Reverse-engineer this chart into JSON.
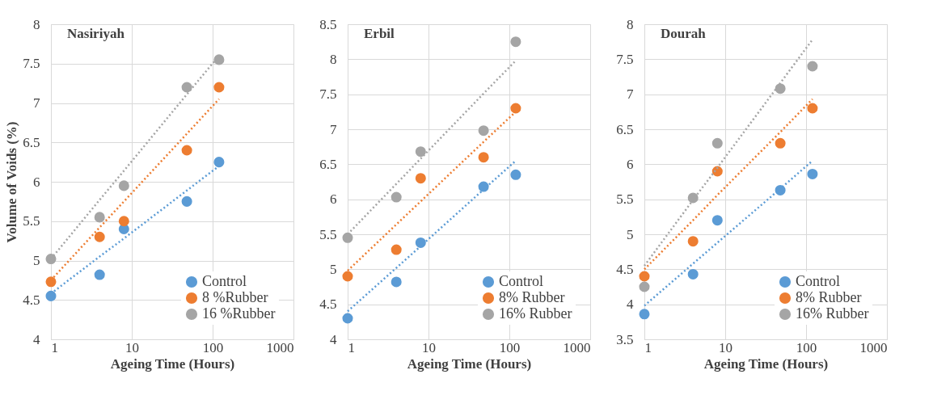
{
  "chart_data": [
    {
      "type": "scatter",
      "title": "Nasiriyah",
      "xlabel": "Ageing Time (Hours)",
      "ylabel": "Volume of Voids (%)",
      "x": [
        1,
        4,
        8,
        48,
        120
      ],
      "log": "x",
      "xlim": [
        1,
        1000
      ],
      "xticks": [
        1,
        10,
        100,
        1000
      ],
      "ylim": [
        4,
        8
      ],
      "yticks": [
        4,
        4.5,
        5,
        5.5,
        6,
        6.5,
        7,
        7.5,
        8
      ],
      "grid": true,
      "legend": "bottom right",
      "marker": "circle",
      "series": [
        {
          "name": "Control",
          "color": "#5b9bd5",
          "values": [
            4.55,
            4.82,
            5.4,
            5.75,
            6.25
          ]
        },
        {
          "name": "8 %Rubber",
          "color": "#ed7d31",
          "values": [
            4.73,
            5.3,
            5.5,
            6.4,
            7.2
          ]
        },
        {
          "name": "16 %Rubber",
          "color": "#a5a5a5",
          "values": [
            5.02,
            5.55,
            5.95,
            7.2,
            7.55
          ]
        },
        {
          "type": "line",
          "color": "#5b9bd5",
          "line_style": "dotted",
          "marker": "none",
          "values": [
            4.58,
            5.05,
            5.28,
            5.89,
            6.2
          ]
        },
        {
          "type": "line",
          "color": "#ed7d31",
          "line_style": "dotted",
          "marker": "none",
          "values": [
            4.75,
            5.42,
            5.75,
            6.61,
            7.05
          ]
        },
        {
          "type": "line",
          "color": "#a5a5a5",
          "line_style": "dotted",
          "marker": "none",
          "values": [
            5.02,
            5.77,
            6.14,
            7.11,
            7.6
          ]
        }
      ]
    },
    {
      "type": "scatter",
      "title": "Erbil",
      "xlabel": "Ageing Time (Hours)",
      "x": [
        1,
        4,
        8,
        48,
        120
      ],
      "log": "x",
      "xlim": [
        1,
        1000
      ],
      "xticks": [
        1,
        10,
        100,
        1000
      ],
      "ylim": [
        4,
        8.5
      ],
      "yticks": [
        4,
        4.5,
        5,
        5.5,
        6,
        6.5,
        7,
        7.5,
        8,
        8.5
      ],
      "grid": true,
      "legend": "bottom right",
      "marker": "circle",
      "series": [
        {
          "name": "Control",
          "color": "#5b9bd5",
          "values": [
            4.3,
            4.82,
            5.38,
            6.18,
            6.35
          ]
        },
        {
          "name": "8% Rubber",
          "color": "#ed7d31",
          "values": [
            4.9,
            5.28,
            6.3,
            6.6,
            7.3
          ]
        },
        {
          "name": "16% Rubber",
          "color": "#a5a5a5",
          "values": [
            5.45,
            6.03,
            6.68,
            6.98,
            8.25
          ]
        },
        {
          "type": "line",
          "color": "#5b9bd5",
          "line_style": "dotted",
          "marker": "none",
          "values": [
            4.4,
            5.02,
            5.33,
            6.14,
            6.55
          ]
        },
        {
          "type": "line",
          "color": "#ed7d31",
          "line_style": "dotted",
          "marker": "none",
          "values": [
            4.98,
            5.64,
            5.97,
            6.82,
            7.25
          ]
        },
        {
          "type": "line",
          "color": "#a5a5a5",
          "line_style": "dotted",
          "marker": "none",
          "values": [
            5.5,
            6.22,
            6.58,
            7.51,
            7.98
          ]
        }
      ]
    },
    {
      "type": "scatter",
      "title": "Dourah",
      "xlabel": "Ageing Time (Hours)",
      "x": [
        1,
        4,
        8,
        48,
        120
      ],
      "log": "x",
      "xlim": [
        1,
        1000
      ],
      "xticks": [
        1,
        10,
        100,
        1000
      ],
      "ylim": [
        3.5,
        8
      ],
      "yticks": [
        3.5,
        4,
        4.5,
        5,
        5.5,
        6,
        6.5,
        7,
        7.5,
        8
      ],
      "grid": true,
      "legend": "bottom right",
      "marker": "circle",
      "series": [
        {
          "name": "Control",
          "color": "#5b9bd5",
          "values": [
            3.86,
            4.43,
            5.2,
            5.63,
            5.86
          ]
        },
        {
          "name": "8% Rubber",
          "color": "#ed7d31",
          "values": [
            4.4,
            4.9,
            5.9,
            6.3,
            6.8
          ]
        },
        {
          "name": "16% Rubber",
          "color": "#a5a5a5",
          "values": [
            4.25,
            5.52,
            6.3,
            7.08,
            7.4
          ]
        },
        {
          "type": "line",
          "color": "#5b9bd5",
          "line_style": "dotted",
          "marker": "none",
          "values": [
            3.98,
            4.58,
            4.88,
            5.65,
            6.05
          ]
        },
        {
          "type": "line",
          "color": "#ed7d31",
          "line_style": "dotted",
          "marker": "none",
          "values": [
            4.5,
            5.2,
            5.56,
            6.46,
            6.93
          ]
        },
        {
          "type": "line",
          "color": "#a5a5a5",
          "line_style": "dotted",
          "marker": "none",
          "values": [
            4.55,
            5.49,
            5.95,
            7.16,
            7.78
          ]
        }
      ]
    }
  ]
}
